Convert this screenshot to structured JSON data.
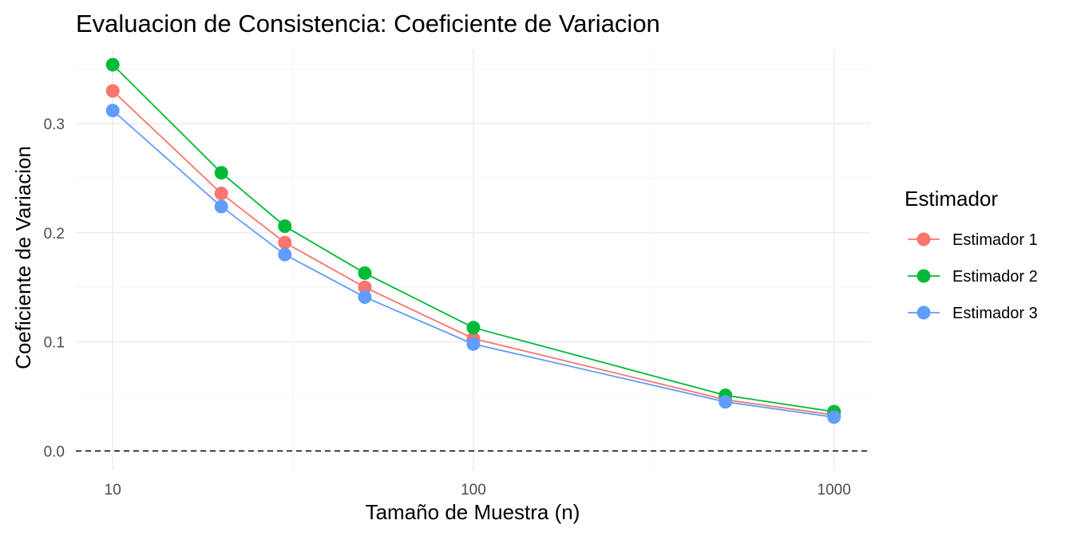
{
  "chart_data": {
    "type": "line",
    "title": "Evaluacion de Consistencia: Coeficiente de Variacion",
    "xlabel": "Tamaño de Muestra (n)",
    "ylabel": "Coeficiente de Variacion",
    "x_scale": "log10",
    "xlim": [
      7.9,
      1260
    ],
    "ylim": [
      -0.018,
      0.368
    ],
    "x_ticks": [
      10,
      100,
      1000
    ],
    "x_tick_labels": [
      "10",
      "100",
      "1000"
    ],
    "x_minor_ticks": [
      31.62,
      316.2
    ],
    "y_ticks": [
      0.0,
      0.1,
      0.2,
      0.3
    ],
    "y_tick_labels": [
      "0.0",
      "0.1",
      "0.2",
      "0.3"
    ],
    "y_minor_ticks": [
      0.05,
      0.15,
      0.25,
      0.35
    ],
    "grid": true,
    "reference_line": {
      "y": 0,
      "style": "dashed"
    },
    "legend": {
      "title": "Estimador",
      "position": "right"
    },
    "x": [
      10,
      20,
      30,
      50,
      100,
      500,
      1000
    ],
    "series": [
      {
        "name": "Estimador 1",
        "color": "#F8766D",
        "values": [
          0.33,
          0.236,
          0.191,
          0.15,
          0.103,
          0.047,
          0.033
        ]
      },
      {
        "name": "Estimador 2",
        "color": "#00BA38",
        "values": [
          0.354,
          0.255,
          0.206,
          0.163,
          0.113,
          0.051,
          0.036
        ]
      },
      {
        "name": "Estimador 3",
        "color": "#619CFF",
        "values": [
          0.312,
          0.224,
          0.18,
          0.141,
          0.098,
          0.045,
          0.031
        ]
      }
    ]
  }
}
